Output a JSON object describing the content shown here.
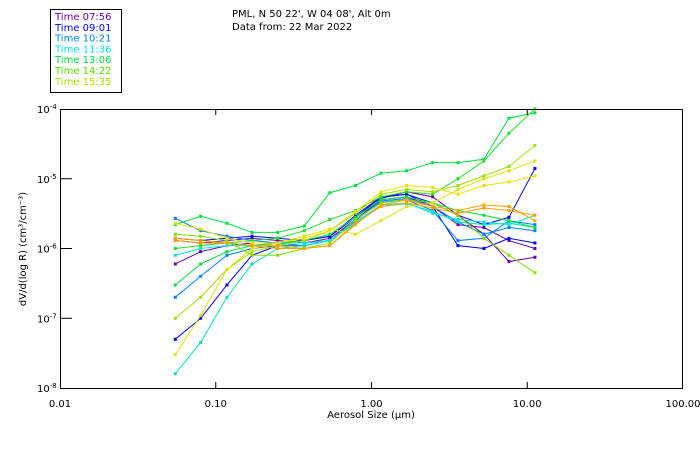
{
  "header": {
    "line1": "PML, N 50 22', W 04 08', Alt 0m",
    "line2": "Data from: 22 Mar 2022"
  },
  "legend": [
    {
      "label": "Time 07:56",
      "color": "#6a00b0"
    },
    {
      "label": "Time 09:01",
      "color": "#0000ff"
    },
    {
      "label": "Time 10:21",
      "color": "#0080ff"
    },
    {
      "label": "Time 11:36",
      "color": "#00e8e8"
    },
    {
      "label": "Time 13:06",
      "color": "#00e040"
    },
    {
      "label": "Time 14:22",
      "color": "#50e000"
    },
    {
      "label": "Time 15:35",
      "color": "#b0e000"
    }
  ],
  "chart_data": {
    "type": "line",
    "xlabel": "Aerosol Size (μm)",
    "ylabel": "dV/d(log R) (cm³/cm⁻³)",
    "xscale": "log",
    "yscale": "log",
    "xlim": [
      0.01,
      100
    ],
    "ylim": [
      1e-08,
      0.0001
    ],
    "xticks": [
      {
        "v": 0.01,
        "label": "0.01"
      },
      {
        "v": 0.1,
        "label": "0.10"
      },
      {
        "v": 1,
        "label": "1.00"
      },
      {
        "v": 10,
        "label": "10.00"
      },
      {
        "v": 100,
        "label": "100.00"
      }
    ],
    "yticks": [
      {
        "v": 0.0001,
        "exp": "-4"
      },
      {
        "v": 1e-05,
        "exp": "-5"
      },
      {
        "v": 1e-06,
        "exp": "-6"
      },
      {
        "v": 1e-07,
        "exp": "-7"
      },
      {
        "v": 1e-08,
        "exp": "-8"
      }
    ],
    "x": [
      0.055,
      0.08,
      0.118,
      0.171,
      0.25,
      0.37,
      0.54,
      0.79,
      1.15,
      1.68,
      2.47,
      3.59,
      5.27,
      7.63,
      11.2
    ],
    "series": [
      {
        "color": "#6a00b0",
        "values": [
          1.3e-06,
          1.2e-06,
          1.3e-06,
          1.4e-06,
          1.3e-06,
          1.2e-06,
          1.3e-06,
          2.5e-06,
          5.2e-06,
          6.5e-06,
          5.5e-06,
          3e-06,
          1.6e-06,
          6.5e-07,
          7.5e-07
        ]
      },
      {
        "color": "#6a00b0",
        "values": [
          6e-07,
          9e-07,
          1.1e-06,
          1.2e-06,
          1.2e-06,
          1.2e-06,
          1.4e-06,
          2.6e-06,
          5e-06,
          5.5e-06,
          4e-06,
          2.2e-06,
          2e-06,
          1.3e-06,
          1e-06
        ]
      },
      {
        "color": "#0000ff",
        "values": [
          5e-08,
          1e-07,
          3e-07,
          8e-07,
          1.1e-06,
          1.3e-06,
          1.5e-06,
          2.8e-06,
          5.4e-06,
          6e-06,
          4e-06,
          1.1e-06,
          1e-06,
          1.4e-06,
          1.2e-06
        ]
      },
      {
        "color": "#0000ff",
        "values": [
          1.4e-06,
          1.3e-06,
          1.4e-06,
          1.5e-06,
          1.4e-06,
          1.3e-06,
          1.5e-06,
          3e-06,
          5.5e-06,
          6e-06,
          4.5e-06,
          3e-06,
          2.2e-06,
          2.8e-06,
          1.4e-05
        ]
      },
      {
        "color": "#0080ff",
        "values": [
          2.7e-06,
          1.8e-06,
          1.5e-06,
          1.3e-06,
          1.2e-06,
          1.1e-06,
          1.3e-06,
          2.5e-06,
          4.8e-06,
          5.2e-06,
          4e-06,
          2.4e-06,
          1.6e-06,
          2e-06,
          1.8e-06
        ]
      },
      {
        "color": "#0080ff",
        "values": [
          2e-07,
          4e-07,
          8e-07,
          1e-06,
          1.1e-06,
          1.1e-06,
          1.3e-06,
          2.6e-06,
          4.6e-06,
          5e-06,
          3.5e-06,
          1.3e-06,
          1.4e-06,
          2.5e-06,
          2.2e-06
        ]
      },
      {
        "color": "#00e0c0",
        "values": [
          1.6e-08,
          4.5e-08,
          2e-07,
          6e-07,
          1e-06,
          1.1e-06,
          1.3e-06,
          2.3e-06,
          4e-06,
          4.4e-06,
          3.4e-06,
          2.4e-06,
          2.2e-06,
          2.3e-06,
          2e-06
        ]
      },
      {
        "color": "#00e8e8",
        "values": [
          8e-07,
          1e-06,
          1.1e-06,
          1.1e-06,
          1.2e-06,
          1.2e-06,
          1.3e-06,
          2.4e-06,
          4.2e-06,
          4.5e-06,
          3.2e-06,
          2.6e-06,
          2.4e-06,
          2.2e-06,
          3e-06
        ]
      },
      {
        "color": "#00e040",
        "values": [
          2.2e-06,
          2.9e-06,
          2.3e-06,
          1.7e-06,
          1.7e-06,
          2.1e-06,
          6.3e-06,
          8e-06,
          1.2e-05,
          1.3e-05,
          1.7e-05,
          1.7e-05,
          1.9e-05,
          7.4e-05,
          8.8e-05
        ]
      },
      {
        "color": "#20e020",
        "values": [
          1e-06,
          1.1e-06,
          1.2e-06,
          1.3e-06,
          1.4e-06,
          1.8e-06,
          2.6e-06,
          3.5e-06,
          5.5e-06,
          6.5e-06,
          6e-06,
          1e-05,
          1.8e-05,
          4.5e-05,
          0.0001
        ]
      },
      {
        "color": "#00e040",
        "values": [
          3e-07,
          6e-07,
          9e-07,
          1.1e-06,
          1.2e-06,
          1.3e-06,
          1.6e-06,
          2.8e-06,
          5e-06,
          5.5e-06,
          4.5e-06,
          3.5e-06,
          3e-06,
          2.5e-06,
          2e-06
        ]
      },
      {
        "color": "#80e000",
        "values": [
          1.6e-06,
          1.5e-06,
          1.3e-06,
          8e-07,
          8e-07,
          1e-06,
          1.2e-06,
          2.6e-06,
          4.5e-06,
          5e-06,
          4.5e-06,
          3e-06,
          1.4e-06,
          8e-07,
          4.5e-07
        ]
      },
      {
        "color": "#a0e000",
        "values": [
          1e-07,
          2e-07,
          5e-07,
          9e-07,
          1.1e-06,
          1.3e-06,
          1.8e-06,
          3.2e-06,
          6e-06,
          7e-06,
          6.5e-06,
          8e-06,
          1.1e-05,
          1.5e-05,
          3e-05
        ]
      },
      {
        "color": "#e0e000",
        "values": [
          3e-08,
          1.1e-07,
          5e-07,
          1e-06,
          1.2e-06,
          1.5e-06,
          1.9e-06,
          1.6e-06,
          2.5e-06,
          4e-06,
          4.5e-06,
          7e-06,
          1e-05,
          1.3e-05,
          1.8e-05
        ]
      },
      {
        "color": "#f0e000",
        "values": [
          2.3e-06,
          1.9e-06,
          1.4e-06,
          1.2e-06,
          1.2e-06,
          1.4e-06,
          1.8e-06,
          3.4e-06,
          6.5e-06,
          8e-06,
          7.5e-06,
          6e-06,
          8e-06,
          9e-06,
          1.1e-05
        ]
      },
      {
        "color": "#ffa000",
        "values": [
          1.4e-06,
          1.3e-06,
          1.2e-06,
          1.1e-06,
          1.1e-06,
          1e-06,
          1.1e-06,
          2.3e-06,
          4e-06,
          4.5e-06,
          3.8e-06,
          3.2e-06,
          3.8e-06,
          3.5e-06,
          3e-06
        ]
      },
      {
        "color": "#ffa000",
        "values": [
          1.3e-06,
          1.2e-06,
          1.2e-06,
          1.1e-06,
          1e-06,
          1e-06,
          1.1e-06,
          2.2e-06,
          4.2e-06,
          5e-06,
          4e-06,
          3.5e-06,
          4.2e-06,
          4e-06,
          2.5e-06
        ]
      }
    ]
  }
}
